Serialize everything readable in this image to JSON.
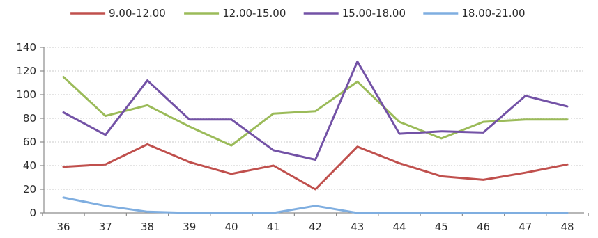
{
  "chart_data": {
    "type": "line",
    "title": "",
    "xlabel": "",
    "ylabel": "",
    "x": [
      36,
      37,
      38,
      39,
      40,
      41,
      42,
      43,
      44,
      45,
      46,
      47,
      48
    ],
    "x_tick_labels": [
      "36",
      "37",
      "38",
      "39",
      "40",
      "41",
      "42",
      "43",
      "44",
      "45",
      "46",
      "47",
      "48"
    ],
    "ylim": [
      0,
      140
    ],
    "y_ticks": [
      0,
      20,
      40,
      60,
      80,
      100,
      120,
      140
    ],
    "grid": "horizontal",
    "legend_position": "top",
    "series": [
      {
        "name": "9.00-12.00",
        "color": "#c0504d",
        "values": [
          39,
          41,
          58,
          43,
          33,
          40,
          20,
          56,
          42,
          31,
          28,
          34,
          41
        ]
      },
      {
        "name": "12.00-15.00",
        "color": "#9bbb59",
        "values": [
          115,
          82,
          91,
          73,
          57,
          84,
          86,
          111,
          77,
          63,
          77,
          79,
          79
        ]
      },
      {
        "name": "15.00-18.00",
        "color": "#7352a6",
        "values": [
          85,
          66,
          112,
          79,
          79,
          53,
          45,
          128,
          67,
          69,
          68,
          99,
          90
        ]
      },
      {
        "name": "18.00-21.00",
        "color": "#7faee0",
        "values": [
          13,
          6,
          1,
          0,
          0,
          0,
          6,
          0,
          0,
          0,
          0,
          0,
          0
        ]
      }
    ]
  }
}
